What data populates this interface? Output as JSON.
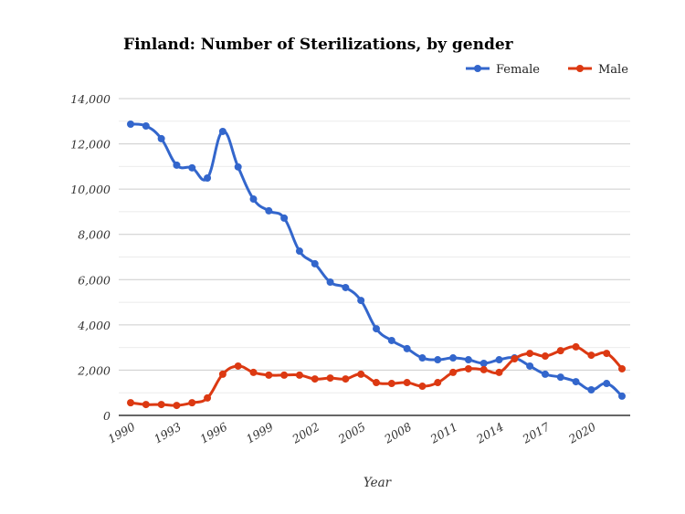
{
  "chart_data": {
    "type": "line",
    "title": "Finland: Number of Sterilizations, by gender",
    "xlabel": "Year",
    "ylabel": "",
    "ylim": [
      0,
      14000
    ],
    "yticks": [
      "0",
      "2,000",
      "4,000",
      "6,000",
      "8,000",
      "10,000",
      "12,000",
      "14,000"
    ],
    "xticks": [
      "1990",
      "1993",
      "1996",
      "1999",
      "2002",
      "2005",
      "2008",
      "2011",
      "2014",
      "2017",
      "2020"
    ],
    "grid": true,
    "legend_position": "top-right",
    "x": [
      1990,
      1991,
      1992,
      1993,
      1994,
      1995,
      1996,
      1997,
      1998,
      1999,
      2000,
      2001,
      2002,
      2003,
      2004,
      2005,
      2006,
      2007,
      2008,
      2009,
      2010,
      2011,
      2012,
      2013,
      2014,
      2015,
      2016,
      2017,
      2018,
      2019,
      2020,
      2021,
      2022
    ],
    "series": [
      {
        "name": "Female",
        "color": "#3366cc",
        "values": [
          12870,
          12790,
          12230,
          11060,
          10940,
          10490,
          12550,
          10980,
          9560,
          9040,
          8720,
          7260,
          6700,
          5890,
          5650,
          5080,
          3830,
          3310,
          2950,
          2540,
          2460,
          2540,
          2460,
          2300,
          2460,
          2540,
          2180,
          1820,
          1690,
          1490,
          1130,
          1410,
          850
        ]
      },
      {
        "name": "Male",
        "color": "#dc3912",
        "values": [
          560,
          480,
          480,
          440,
          560,
          770,
          1820,
          2180,
          1900,
          1780,
          1780,
          1780,
          1610,
          1650,
          1610,
          1820,
          1450,
          1410,
          1450,
          1290,
          1450,
          1900,
          2060,
          2020,
          1900,
          2500,
          2740,
          2620,
          2860,
          3030,
          2660,
          2740,
          2060
        ]
      }
    ]
  }
}
